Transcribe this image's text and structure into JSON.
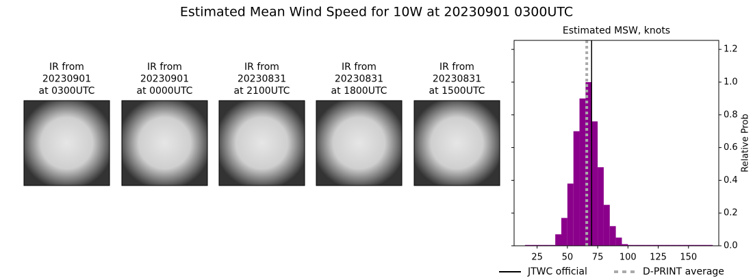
{
  "title": "Estimated Mean Wind Speed for 10W at 20230901 0300UTC",
  "panels": [
    {
      "lines": [
        "IR from",
        "20230901",
        "at 0300UTC"
      ]
    },
    {
      "lines": [
        "IR from",
        "20230901",
        "at 0000UTC"
      ]
    },
    {
      "lines": [
        "IR from",
        "20230831",
        "at 2100UTC"
      ]
    },
    {
      "lines": [
        "IR from",
        "20230831",
        "at 1800UTC"
      ]
    },
    {
      "lines": [
        "IR from",
        "20230831",
        "at 1500UTC"
      ]
    }
  ],
  "chart_data": {
    "type": "histogram",
    "title": "Estimated MSW, knots",
    "y_label": "Relative Prob",
    "color": "#8b008b",
    "bins": [
      15,
      20,
      25,
      30,
      35,
      40,
      45,
      50,
      55,
      60,
      65,
      70,
      75,
      80,
      85,
      90,
      95,
      100,
      105,
      110,
      115,
      120,
      125,
      130,
      135,
      140,
      145,
      150,
      155,
      160,
      165,
      170
    ],
    "values": [
      0.005,
      0.005,
      0.005,
      0.005,
      0.005,
      0.07,
      0.17,
      0.38,
      0.7,
      0.9,
      1.0,
      0.76,
      0.48,
      0.25,
      0.12,
      0.05,
      0.01,
      0.005,
      0.005,
      0.005,
      0.005,
      0.005,
      0.005,
      0.005,
      0.005,
      0.005,
      0.005,
      0.005,
      0.005,
      0.005,
      0.005
    ],
    "xlim": [
      6,
      175
    ],
    "xticks": [
      25,
      50,
      75,
      100,
      125,
      150
    ],
    "ylim": [
      0,
      1.255
    ],
    "yticks": [
      {
        "value": 0,
        "label": "0.0"
      },
      0.2,
      0.4,
      0.6,
      0.8,
      {
        "value": 1,
        "label": "1.0"
      },
      1.2
    ],
    "y_axis_side": "right",
    "lines": [
      {
        "name": "JTWC official",
        "x": 70,
        "color": "#000000",
        "dashed": false
      },
      {
        "name": "D-PRINT average",
        "x": 66,
        "color": "#aaaaaa",
        "dashed": true
      }
    ]
  }
}
